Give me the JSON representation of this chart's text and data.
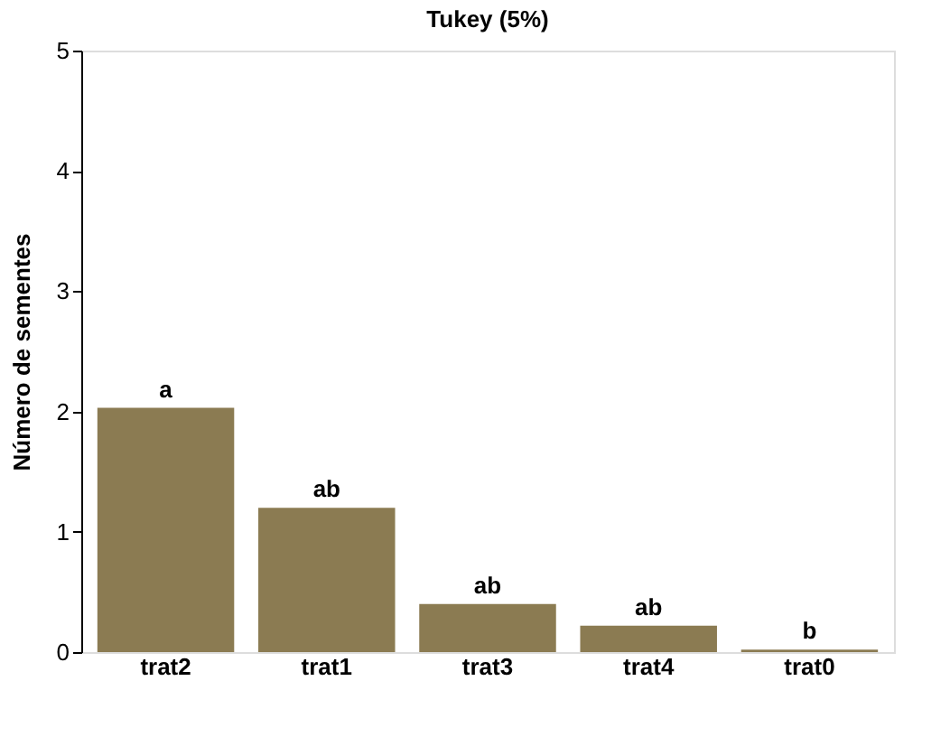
{
  "chart_data": {
    "type": "bar",
    "title": "Tukey (5%)",
    "ylabel": "Número de sementes",
    "categories": [
      "trat2",
      "trat1",
      "trat3",
      "trat4",
      "trat0"
    ],
    "values": [
      2.03,
      1.2,
      0.4,
      0.22,
      0.02
    ],
    "color": "#8b7b52",
    "ylim": [
      0,
      5
    ],
    "yticks": [
      0,
      1,
      2,
      3,
      4,
      5
    ],
    "grid": false,
    "annotations": [
      {
        "text": "a",
        "x": "trat2",
        "y": 2.03
      },
      {
        "text": "ab",
        "x": "trat1",
        "y": 1.2
      },
      {
        "text": "ab",
        "x": "trat3",
        "y": 0.4
      },
      {
        "text": "ab",
        "x": "trat4",
        "y": 0.22
      },
      {
        "text": "b",
        "x": "trat0",
        "y": 0.02
      }
    ]
  }
}
